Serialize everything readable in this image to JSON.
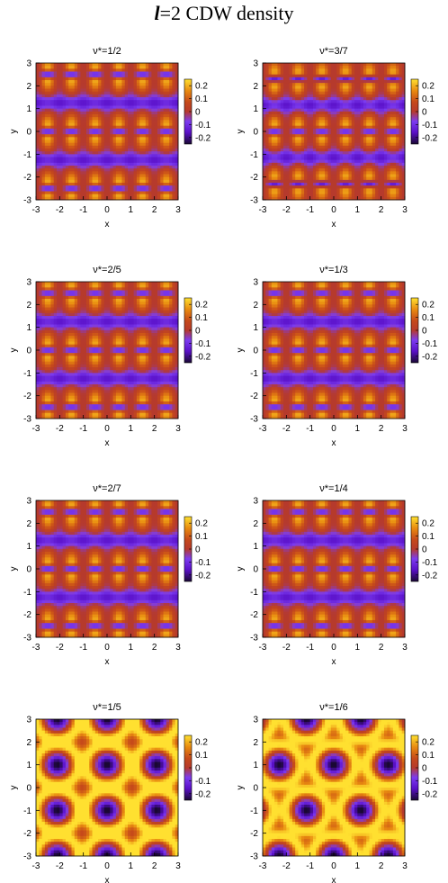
{
  "page": {
    "title_symbol": "l",
    "title_rest": "=2 CDW density"
  },
  "colorscale": {
    "stops": [
      "#1a0833",
      "#5a10c8",
      "#7c3cf0",
      "#b63a2c",
      "#c64a1a",
      "#e88a10",
      "#ffe030"
    ],
    "colorbar_ticks": [
      0.2,
      0.1,
      0,
      -0.1,
      -0.2
    ],
    "colorbar_labels": [
      "0.2",
      "0.1",
      "0",
      "-0.1",
      "-0.2"
    ],
    "range": [
      -0.25,
      0.25
    ]
  },
  "chart_data": [
    {
      "type": "heatmap",
      "title": "ν*=1/2",
      "xlabel": "x",
      "ylabel": "y",
      "xlim": [
        -3,
        3
      ],
      "ylim": [
        -3,
        3
      ],
      "xticks": [
        "-3",
        "-2",
        "-1",
        "0",
        "1",
        "2",
        "3"
      ],
      "yticks": [
        "-3",
        "-2",
        "-1",
        "0",
        "1",
        "2",
        "3"
      ],
      "pattern": "stripes",
      "stripe_rows_y": [
        2.5,
        0,
        -2.5
      ],
      "dots_per_row": 6
    },
    {
      "type": "heatmap",
      "title": "ν*=3/7",
      "xlabel": "x",
      "ylabel": "y",
      "xlim": [
        -3,
        3
      ],
      "ylim": [
        -3,
        3
      ],
      "xticks": [
        "-3",
        "-2",
        "-1",
        "0",
        "1",
        "2",
        "3"
      ],
      "yticks": [
        "-3",
        "-2",
        "-1",
        "0",
        "1",
        "2",
        "3"
      ],
      "pattern": "stripes",
      "stripe_rows_y": [
        2.3,
        0,
        -2.3
      ],
      "dots_per_row": 6
    },
    {
      "type": "heatmap",
      "title": "ν*=2/5",
      "xlabel": "x",
      "ylabel": "y",
      "xlim": [
        -3,
        3
      ],
      "ylim": [
        -3,
        3
      ],
      "xticks": [
        "-3",
        "-2",
        "-1",
        "0",
        "1",
        "2",
        "3"
      ],
      "yticks": [
        "-3",
        "-2",
        "-1",
        "0",
        "1",
        "2",
        "3"
      ],
      "pattern": "stripes",
      "stripe_rows_y": [
        2.5,
        0,
        -2.5
      ],
      "dots_per_row": 6
    },
    {
      "type": "heatmap",
      "title": "ν*=1/3",
      "xlabel": "x",
      "ylabel": "y",
      "xlim": [
        -3,
        3
      ],
      "ylim": [
        -3,
        3
      ],
      "xticks": [
        "-3",
        "-2",
        "-1",
        "0",
        "1",
        "2",
        "3"
      ],
      "yticks": [
        "-3",
        "-2",
        "-1",
        "0",
        "1",
        "2",
        "3"
      ],
      "pattern": "stripes",
      "stripe_rows_y": [
        2.5,
        0,
        -2.5
      ],
      "dots_per_row": 6
    },
    {
      "type": "heatmap",
      "title": "ν*=2/7",
      "xlabel": "x",
      "ylabel": "y",
      "xlim": [
        -3,
        3
      ],
      "ylim": [
        -3,
        3
      ],
      "xticks": [
        "-3",
        "-2",
        "-1",
        "0",
        "1",
        "2",
        "3"
      ],
      "yticks": [
        "-3",
        "-2",
        "-1",
        "0",
        "1",
        "2",
        "3"
      ],
      "pattern": "stripes",
      "stripe_rows_y": [
        2.5,
        0,
        -2.5
      ],
      "dots_per_row": 6
    },
    {
      "type": "heatmap",
      "title": "ν*=1/4",
      "xlabel": "x",
      "ylabel": "y",
      "xlim": [
        -3,
        3
      ],
      "ylim": [
        -3,
        3
      ],
      "xticks": [
        "-3",
        "-2",
        "-1",
        "0",
        "1",
        "2",
        "3"
      ],
      "yticks": [
        "-3",
        "-2",
        "-1",
        "0",
        "1",
        "2",
        "3"
      ],
      "pattern": "stripes",
      "stripe_rows_y": [
        2.5,
        0,
        -2.5
      ],
      "dots_per_row": 6
    },
    {
      "type": "heatmap",
      "title": "ν*=1/5",
      "xlabel": "x",
      "ylabel": "y",
      "xlim": [
        -3,
        3
      ],
      "ylim": [
        -3,
        3
      ],
      "xticks": [
        "-3",
        "-2",
        "-1",
        "0",
        "1",
        "2",
        "3"
      ],
      "yticks": [
        "-3",
        "-2",
        "-1",
        "0",
        "1",
        "2",
        "3"
      ],
      "pattern": "lattice"
    },
    {
      "type": "heatmap",
      "title": "ν*=1/6",
      "xlabel": "x",
      "ylabel": "y",
      "xlim": [
        -3,
        3
      ],
      "ylim": [
        -3,
        3
      ],
      "xticks": [
        "-3",
        "-2",
        "-1",
        "0",
        "1",
        "2",
        "3"
      ],
      "yticks": [
        "-3",
        "-2",
        "-1",
        "0",
        "1",
        "2",
        "3"
      ],
      "pattern": "lattice"
    }
  ]
}
